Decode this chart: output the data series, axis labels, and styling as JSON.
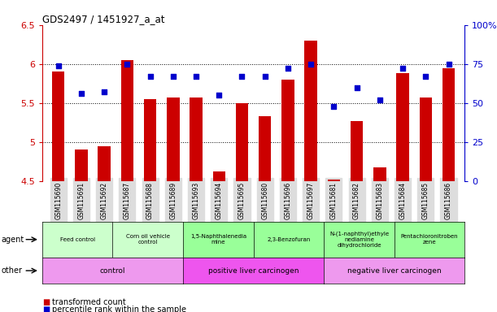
{
  "title": "GDS2497 / 1451927_a_at",
  "samples": [
    "GSM115690",
    "GSM115691",
    "GSM115692",
    "GSM115687",
    "GSM115688",
    "GSM115689",
    "GSM115693",
    "GSM115694",
    "GSM115695",
    "GSM115680",
    "GSM115696",
    "GSM115697",
    "GSM115681",
    "GSM115682",
    "GSM115683",
    "GSM115684",
    "GSM115685",
    "GSM115686"
  ],
  "transformed_count": [
    5.9,
    4.9,
    4.95,
    6.05,
    5.55,
    5.57,
    5.57,
    4.62,
    5.5,
    5.33,
    5.8,
    6.3,
    4.52,
    5.27,
    4.67,
    5.88,
    5.57,
    5.95
  ],
  "percentile_rank": [
    74,
    56,
    57,
    75,
    67,
    67,
    67,
    55,
    67,
    67,
    72,
    75,
    48,
    60,
    52,
    72,
    67,
    75
  ],
  "ylim_left": [
    4.5,
    6.5
  ],
  "ylim_right": [
    0,
    100
  ],
  "yticks_left": [
    4.5,
    5.0,
    5.5,
    6.0,
    6.5
  ],
  "ytick_labels_left": [
    "4.5",
    "5",
    "5.5",
    "6",
    "6.5"
  ],
  "yticks_right": [
    0,
    25,
    50,
    75,
    100
  ],
  "ytick_labels_right": [
    "0",
    "25",
    "50",
    "75",
    "100%"
  ],
  "bar_color": "#cc0000",
  "dot_color": "#0000cc",
  "bar_baseline": 4.5,
  "agent_groups": [
    {
      "label": "Feed control",
      "start": 0,
      "end": 3,
      "color": "#ccffcc"
    },
    {
      "label": "Corn oil vehicle\ncontrol",
      "start": 3,
      "end": 6,
      "color": "#ccffcc"
    },
    {
      "label": "1,5-Naphthalenedia\nmine",
      "start": 6,
      "end": 9,
      "color": "#99ff99"
    },
    {
      "label": "2,3-Benzofuran",
      "start": 9,
      "end": 12,
      "color": "#99ff99"
    },
    {
      "label": "N-(1-naphthyl)ethyle\nnediamine\ndihydrochloride",
      "start": 12,
      "end": 15,
      "color": "#99ff99"
    },
    {
      "label": "Pentachloronitroben\nzene",
      "start": 15,
      "end": 18,
      "color": "#99ff99"
    }
  ],
  "other_groups": [
    {
      "label": "control",
      "start": 0,
      "end": 6,
      "color": "#ee99ee"
    },
    {
      "label": "positive liver carcinogen",
      "start": 6,
      "end": 12,
      "color": "#ee55ee"
    },
    {
      "label": "negative liver carcinogen",
      "start": 12,
      "end": 18,
      "color": "#ee99ee"
    }
  ],
  "legend_items": [
    {
      "color": "#cc0000",
      "label": "transformed count"
    },
    {
      "color": "#0000cc",
      "label": "percentile rank within the sample"
    }
  ]
}
